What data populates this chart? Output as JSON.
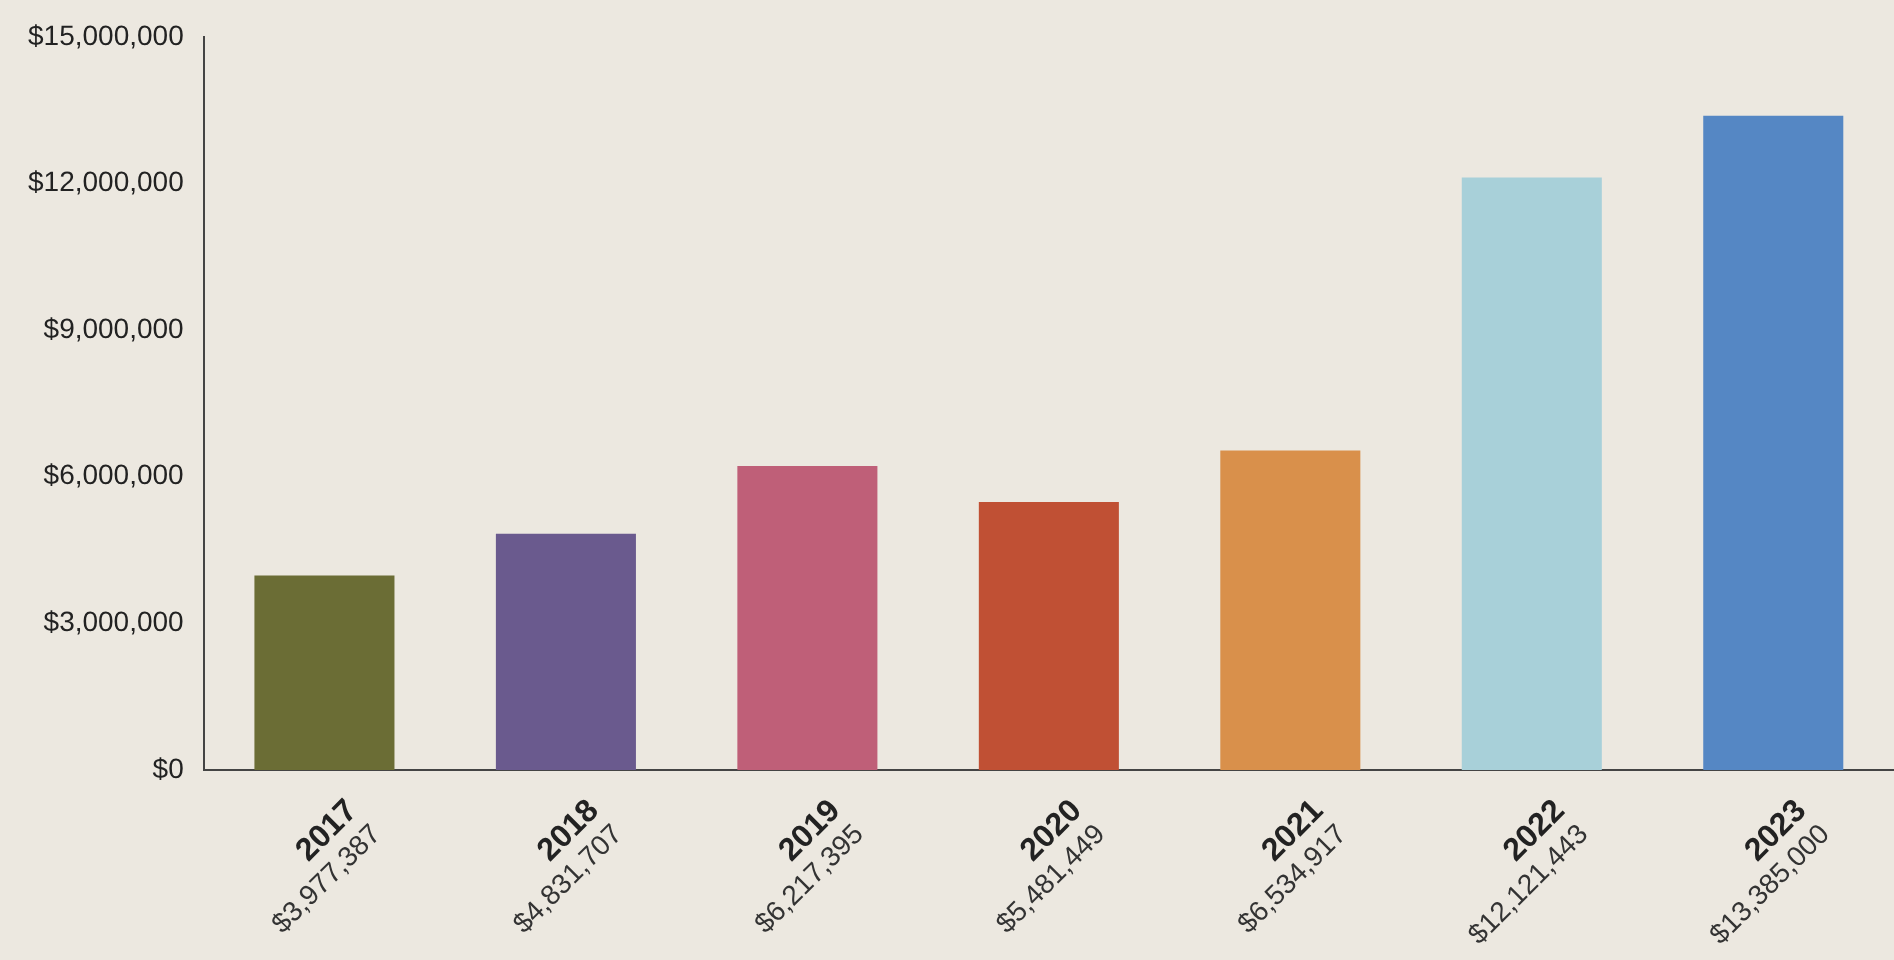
{
  "chart_data": {
    "type": "bar",
    "categories": [
      "2017",
      "2018",
      "2019",
      "2020",
      "2021",
      "2022",
      "2023"
    ],
    "values": [
      3977387,
      4831707,
      6217395,
      5481449,
      6534917,
      12121443,
      13385000
    ],
    "value_labels": [
      "$3,977,387",
      "$4,831,707",
      "$6,217,395",
      "$5,481,449",
      "$6,534,917",
      "$12,121,443",
      "$13,385,000"
    ],
    "colors": [
      "#6b6d35",
      "#6a5a8e",
      "#bf5f78",
      "#c05034",
      "#d9904b",
      "#a8d0d9",
      "#5587c4"
    ],
    "ylim": [
      0,
      15000000
    ],
    "yticks": [
      {
        "value": 0,
        "label": "$0"
      },
      {
        "value": 3000000,
        "label": "$3,000,000"
      },
      {
        "value": 6000000,
        "label": "$6,000,000"
      },
      {
        "value": 9000000,
        "label": "$9,000,000"
      },
      {
        "value": 12000000,
        "label": "$12,000,000"
      },
      {
        "value": 15000000,
        "label": "$15,000,000"
      }
    ],
    "grid": false,
    "legend": false
  }
}
